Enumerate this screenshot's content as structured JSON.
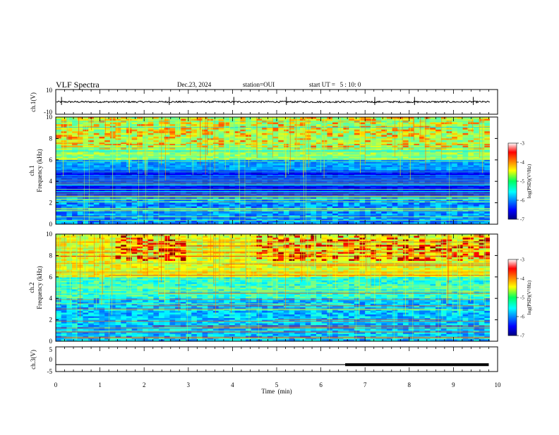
{
  "header": {
    "title": "VLF Spectra",
    "date": "Dec.23, 2024",
    "station": "station=OUI",
    "start": "start UT =   5 : 10: 0"
  },
  "chart_data": [
    {
      "type": "line",
      "name": "ch1-waveform",
      "ylabel": "ch.1(V)",
      "ylim": [
        -10,
        10
      ],
      "yticks": [
        "10",
        "-10"
      ],
      "xlim": [
        0,
        10
      ],
      "baseline": 0,
      "spikes_at_min": [
        0.13,
        2.57,
        4.03,
        5.22,
        7.22,
        8.12,
        9.45
      ]
    },
    {
      "type": "heatmap",
      "name": "ch1-spectrogram",
      "ylabel": "Frequency (kHz)",
      "channel_label": "ch.1",
      "ylim": [
        0,
        10
      ],
      "yticks": [
        "0",
        "2",
        "4",
        "6",
        "8",
        "10"
      ],
      "xlim": [
        0,
        10
      ],
      "colorbar": {
        "label": "log(PSD)(V²/Hz)",
        "range": [
          -7,
          -3
        ],
        "ticks": [
          "-3",
          "-4",
          "-5",
          "-6",
          "-7"
        ]
      }
    },
    {
      "type": "heatmap",
      "name": "ch2-spectrogram",
      "ylabel": "Frequency (kHz)",
      "channel_label": "ch.2",
      "ylim": [
        0,
        10
      ],
      "yticks": [
        "0",
        "2",
        "4",
        "6",
        "8",
        "10"
      ],
      "xlim": [
        0,
        10
      ],
      "colorbar": {
        "label": "log(PSD)(V²/Hz)",
        "range": [
          -7,
          -3
        ],
        "ticks": [
          "-3",
          "-4",
          "-5",
          "-6",
          "-7"
        ]
      }
    },
    {
      "type": "line",
      "name": "ch3-waveform",
      "ylabel": "ch.3(V)",
      "ylim": [
        -5,
        5
      ],
      "yticks": [
        "5",
        "0",
        "-5"
      ],
      "xlim": [
        0,
        10
      ],
      "series": [
        {
          "x": [
            0,
            6.55
          ],
          "y": [
            -2.2,
            -2.2
          ]
        },
        {
          "x": [
            6.55,
            9.8
          ],
          "y": [
            -2.2,
            -2.2
          ],
          "thick": true
        }
      ]
    }
  ],
  "xaxis": {
    "label": "Time  (min)",
    "ticks": [
      "0",
      "1",
      "2",
      "3",
      "4",
      "5",
      "6",
      "7",
      "8",
      "9",
      "10"
    ]
  }
}
